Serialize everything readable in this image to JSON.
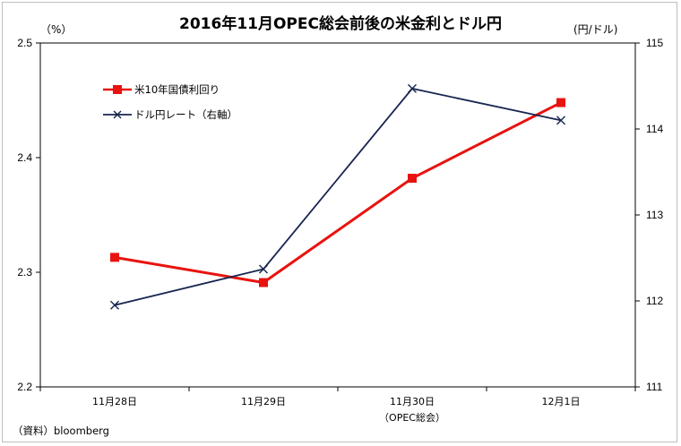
{
  "chart_data": {
    "type": "line",
    "title": "2016年11月OPEC総会前後の米金利とドル円",
    "y_left_unit": "（%）",
    "y_right_unit": "(円/ドル)",
    "categories": [
      "11月28日",
      "11月29日",
      "11月30日",
      "12月1日"
    ],
    "category_sublabels": [
      "",
      "",
      "（OPEC総会）",
      ""
    ],
    "y_left": {
      "min": 2.2,
      "max": 2.5,
      "ticks": [
        "2.2",
        "2.3",
        "2.4",
        "2.5"
      ]
    },
    "y_right": {
      "min": 111,
      "max": 115,
      "ticks": [
        "111",
        "112",
        "113",
        "114",
        "115"
      ]
    },
    "series": [
      {
        "name": "米10年国債利回り",
        "axis": "left",
        "color": "#e8130f",
        "marker": "square",
        "values": [
          2.313,
          2.291,
          2.382,
          2.448
        ]
      },
      {
        "name": "ドル円レート（右軸）",
        "axis": "right",
        "color": "#17244f",
        "marker": "x",
        "values": [
          111.95,
          112.37,
          114.47,
          114.1
        ]
      }
    ],
    "legend_position": "top-left",
    "grid": false,
    "source": "（資料）bloomberg"
  }
}
